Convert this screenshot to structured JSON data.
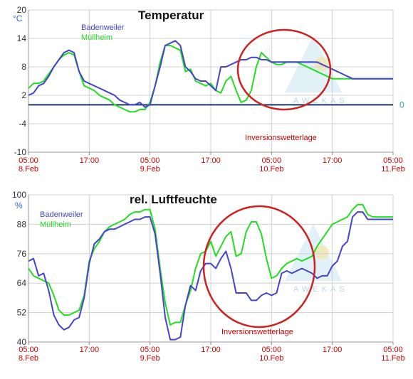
{
  "colors": {
    "badenweiler": "#4444cc",
    "muellheim": "#22dd22",
    "tick_labels": "#cc0000",
    "circle": "#cc2222",
    "grid": "#d0d0d0",
    "zero_line": "#1a3a6a"
  },
  "watermark": "AWEKAS",
  "chart_data": [
    {
      "type": "line",
      "title": "Temperatur",
      "unit": "°C",
      "ylim": [
        -10,
        20
      ],
      "yticks": [
        "20",
        "14",
        "8",
        "2",
        "-4",
        "-10"
      ],
      "zero_label": "0",
      "grid": true,
      "legend": "top-left",
      "x_ticks": [
        {
          "time": "05:00",
          "date": "8.Feb"
        },
        {
          "time": "17:00",
          "date": ""
        },
        {
          "time": "05:00",
          "date": "9.Feb"
        },
        {
          "time": "17:00",
          "date": ""
        },
        {
          "time": "05:00",
          "date": "10.Feb"
        },
        {
          "time": "17:00",
          "date": ""
        },
        {
          "time": "05:00",
          "date": "11.Feb"
        }
      ],
      "x_hours": [
        0,
        1,
        2,
        3,
        4,
        5,
        6,
        7,
        8,
        9,
        10,
        11,
        12,
        13,
        14,
        15,
        16,
        17,
        18,
        19,
        20,
        21,
        22,
        23,
        24,
        25,
        26,
        27,
        28,
        29,
        30,
        31,
        32,
        33,
        34,
        35,
        36,
        37,
        38,
        39,
        40,
        41,
        42,
        43,
        44,
        45,
        46,
        47,
        48,
        49,
        50,
        51,
        52,
        53,
        54,
        55,
        56,
        57,
        58,
        59,
        60,
        61,
        62,
        63,
        64,
        65,
        66,
        67,
        68,
        69,
        70,
        71,
        72
      ],
      "series": [
        {
          "name": "Badenweiler",
          "values": [
            2,
            2.5,
            4,
            4.5,
            6,
            8,
            9.5,
            11,
            11.5,
            11,
            7,
            5,
            4.5,
            4,
            3.5,
            3,
            2.5,
            2,
            1,
            0.5,
            0,
            0,
            0.5,
            -0.5,
            0,
            4,
            8,
            12.5,
            13,
            13.5,
            12.5,
            8,
            7,
            5.5,
            5,
            5,
            4,
            3,
            8,
            8,
            8.5,
            9,
            9.5,
            9.5,
            10,
            10,
            9.5,
            9.5,
            9,
            9,
            9,
            9,
            9,
            9,
            9,
            9,
            9,
            9,
            8.5,
            8,
            7.5,
            7,
            6.5,
            6,
            5.5,
            5.5,
            5.5,
            5.5,
            5.5,
            5.5,
            5.5,
            5.5,
            5.5
          ]
        },
        {
          "name": "Müllheim",
          "values": [
            3.5,
            4.5,
            4.5,
            5,
            6.5,
            8,
            9.5,
            10.5,
            11,
            10.5,
            7,
            4,
            3.5,
            3,
            2,
            1.5,
            1,
            0,
            -0.5,
            -1,
            -1.5,
            -1.5,
            -1,
            -1,
            0.5,
            4,
            9,
            12.5,
            12.5,
            12,
            11.5,
            7,
            7.5,
            5,
            4.5,
            4,
            4.5,
            3,
            2.5,
            5,
            6,
            3,
            0.5,
            1,
            3,
            8,
            11,
            10,
            9,
            8.5,
            8.5,
            9,
            9,
            9,
            8.5,
            8,
            7.5,
            7,
            6.5,
            6,
            5.5,
            5.5,
            5.5,
            5.5,
            5.5,
            5.5,
            5.5,
            5.5,
            5.5,
            5.5,
            5.5,
            5.5,
            5.5
          ]
        }
      ],
      "annotation": "Inversionswetterlage"
    },
    {
      "type": "line",
      "title": "rel. Luftfeuchte",
      "unit": "%",
      "ylim": [
        40,
        100
      ],
      "yticks": [
        "100",
        "88",
        "76",
        "64",
        "52",
        "40"
      ],
      "grid": true,
      "legend": "top-left",
      "x_ticks": [
        {
          "time": "05:00",
          "date": "8.Feb"
        },
        {
          "time": "17:00",
          "date": ""
        },
        {
          "time": "05:00",
          "date": "9.Feb"
        },
        {
          "time": "17:00",
          "date": ""
        },
        {
          "time": "05:00",
          "date": "10.Feb"
        },
        {
          "time": "17:00",
          "date": ""
        },
        {
          "time": "05:00",
          "date": "11.Feb"
        }
      ],
      "x_hours": [
        0,
        1,
        2,
        3,
        4,
        5,
        6,
        7,
        8,
        9,
        10,
        11,
        12,
        13,
        14,
        15,
        16,
        17,
        18,
        19,
        20,
        21,
        22,
        23,
        24,
        25,
        26,
        27,
        28,
        29,
        30,
        31,
        32,
        33,
        34,
        35,
        36,
        37,
        38,
        39,
        40,
        41,
        42,
        43,
        44,
        45,
        46,
        47,
        48,
        49,
        50,
        51,
        52,
        53,
        54,
        55,
        56,
        57,
        58,
        59,
        60,
        61,
        62,
        63,
        64,
        65,
        66,
        67,
        68,
        69,
        70,
        71,
        72
      ],
      "series": [
        {
          "name": "Badenweiler",
          "values": [
            73,
            74,
            67,
            68,
            61,
            51,
            47,
            45,
            46,
            49,
            50,
            58,
            72,
            80,
            82,
            85,
            86,
            86,
            87,
            88,
            89,
            90,
            90,
            91,
            91,
            84,
            68,
            50,
            41,
            41,
            42,
            55,
            63,
            61,
            69,
            72,
            72,
            70,
            74,
            77,
            70,
            60,
            60,
            60,
            57,
            57,
            59,
            60,
            59,
            60,
            68,
            69,
            68,
            69,
            70,
            69,
            68,
            66,
            67,
            67,
            71,
            73,
            79,
            81,
            91,
            93,
            93,
            90,
            90,
            90,
            90,
            90,
            90
          ]
        },
        {
          "name": "Müllheim",
          "values": [
            70,
            67,
            66,
            65,
            64,
            59,
            53,
            51,
            51,
            52,
            53,
            59,
            73,
            78,
            81,
            85,
            87,
            88,
            89,
            90,
            92,
            93,
            93,
            94,
            94,
            86,
            70,
            56,
            47,
            48,
            48,
            55,
            61,
            70,
            76,
            77,
            81,
            75,
            79,
            83,
            85,
            75,
            76,
            85,
            89,
            89,
            84,
            74,
            66,
            67,
            70,
            72,
            73,
            74,
            73,
            74,
            75,
            79,
            82,
            85,
            88,
            89,
            90,
            91,
            94,
            96,
            96,
            92,
            91,
            91,
            91,
            91,
            91
          ]
        }
      ],
      "annotation": "Inversionswetterlage"
    }
  ]
}
